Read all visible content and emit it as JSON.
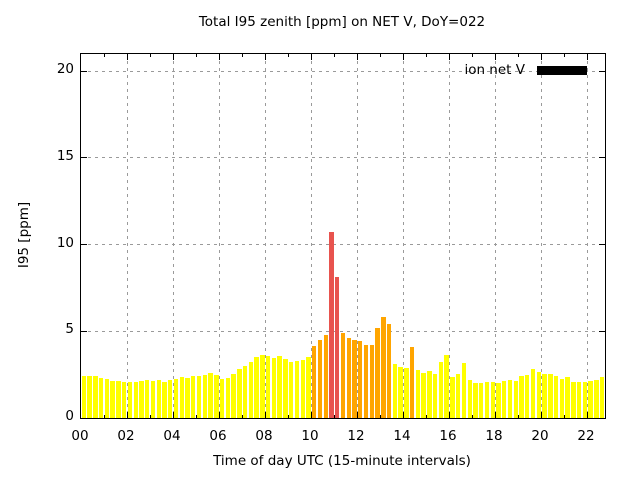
{
  "figure": {
    "kind": "gnuplot-style bar chart"
  },
  "chart_data": {
    "type": "bar",
    "title": "Total I95 zenith [ppm] on NET V, DoY=022",
    "xlabel": "Time of day UTC (15-minute intervals)",
    "ylabel": "I95 [ppm]",
    "ylim": [
      0,
      21
    ],
    "y_ticks": [
      0,
      5,
      10,
      15,
      20
    ],
    "x_major_tick_hours": [
      0,
      2,
      4,
      6,
      8,
      10,
      12,
      14,
      16,
      18,
      20,
      22
    ],
    "x_tick_labels": [
      "00",
      "02",
      "04",
      "06",
      "08",
      "10",
      "12",
      "14",
      "16",
      "18",
      "20",
      "22"
    ],
    "x_minor_tick_hours": [
      1,
      3,
      5,
      7,
      9,
      11,
      13,
      15,
      17,
      19,
      21
    ],
    "grid": true,
    "grid_color": "#9a9a9a",
    "legend": {
      "label": "ion net V",
      "swatch_color": "#000000",
      "position": "top-right"
    },
    "interval_minutes": 15,
    "palette": {
      "y": "#ffff00",
      "o": "#ffa500",
      "r": "#e8534e"
    },
    "categories": [
      "00:00",
      "00:15",
      "00:30",
      "00:45",
      "01:00",
      "01:15",
      "01:30",
      "01:45",
      "02:00",
      "02:15",
      "02:30",
      "02:45",
      "03:00",
      "03:15",
      "03:30",
      "03:45",
      "04:00",
      "04:15",
      "04:30",
      "04:45",
      "05:00",
      "05:15",
      "05:30",
      "05:45",
      "06:00",
      "06:15",
      "06:30",
      "06:45",
      "07:00",
      "07:15",
      "07:30",
      "07:45",
      "08:00",
      "08:15",
      "08:30",
      "08:45",
      "09:00",
      "09:15",
      "09:30",
      "09:45",
      "10:00",
      "10:15",
      "10:30",
      "10:45",
      "11:00",
      "11:15",
      "11:30",
      "11:45",
      "12:00",
      "12:15",
      "12:30",
      "12:45",
      "13:00",
      "13:15",
      "13:30",
      "13:45",
      "14:00",
      "14:15",
      "14:30",
      "14:45",
      "15:00",
      "15:15",
      "15:30",
      "15:45",
      "16:00",
      "16:15",
      "16:30",
      "16:45",
      "17:00",
      "17:15",
      "17:30",
      "17:45",
      "18:00",
      "18:15",
      "18:30",
      "18:45",
      "19:00",
      "19:15",
      "19:30",
      "19:45",
      "20:00",
      "20:15",
      "20:30",
      "20:45",
      "21:00",
      "21:15",
      "21:30",
      "21:45",
      "22:00",
      "22:15",
      "22:30"
    ],
    "values": [
      2.4,
      2.45,
      2.4,
      2.3,
      2.25,
      2.15,
      2.15,
      2.1,
      2.05,
      2.1,
      2.15,
      2.2,
      2.15,
      2.2,
      2.1,
      2.2,
      2.25,
      2.35,
      2.3,
      2.4,
      2.45,
      2.5,
      2.6,
      2.5,
      2.25,
      2.3,
      2.55,
      2.85,
      3.0,
      3.25,
      3.5,
      3.65,
      3.6,
      3.45,
      3.55,
      3.4,
      3.25,
      3.3,
      3.35,
      3.5,
      4.15,
      4.5,
      4.8,
      10.7,
      8.1,
      4.9,
      4.6,
      4.5,
      4.45,
      4.2,
      4.2,
      5.2,
      5.8,
      5.4,
      3.1,
      2.95,
      2.9,
      4.1,
      2.75,
      2.6,
      2.7,
      2.55,
      3.25,
      3.65,
      2.35,
      2.55,
      3.15,
      2.2,
      2.0,
      2.0,
      2.1,
      2.05,
      2.0,
      2.15,
      2.2,
      2.15,
      2.45,
      2.5,
      2.85,
      2.65,
      2.55,
      2.55,
      2.45,
      2.25,
      2.35,
      2.1,
      2.05,
      2.05,
      2.15,
      2.2,
      2.35
    ],
    "colors": [
      "y",
      "y",
      "y",
      "y",
      "y",
      "y",
      "y",
      "y",
      "y",
      "y",
      "y",
      "y",
      "y",
      "y",
      "y",
      "y",
      "y",
      "y",
      "y",
      "y",
      "y",
      "y",
      "y",
      "y",
      "y",
      "y",
      "y",
      "y",
      "y",
      "y",
      "y",
      "y",
      "y",
      "y",
      "y",
      "y",
      "y",
      "y",
      "y",
      "y",
      "o",
      "o",
      "o",
      "r",
      "r",
      "o",
      "o",
      "o",
      "o",
      "o",
      "o",
      "o",
      "o",
      "o",
      "y",
      "y",
      "y",
      "o",
      "y",
      "y",
      "y",
      "y",
      "y",
      "y",
      "y",
      "y",
      "y",
      "y",
      "y",
      "y",
      "y",
      "y",
      "y",
      "y",
      "y",
      "y",
      "y",
      "y",
      "y",
      "y",
      "y",
      "y",
      "y",
      "y",
      "y",
      "y",
      "y",
      "y",
      "y",
      "y",
      "y"
    ]
  }
}
